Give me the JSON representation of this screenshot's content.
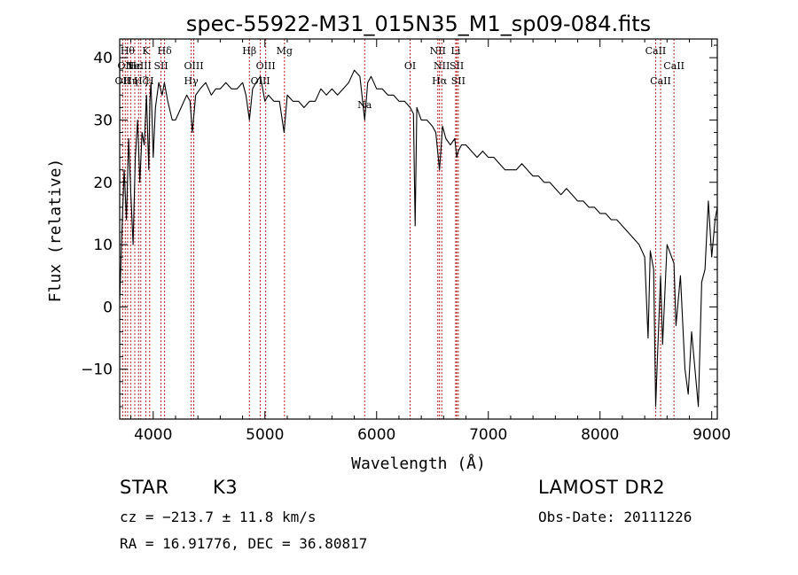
{
  "chart_data": {
    "type": "line",
    "title": "spec-55922-M31_015N35_M1_sp09-084.fits",
    "xlabel": "Wavelength (Å)",
    "ylabel": "Flux (relative)",
    "xlim": [
      3700,
      9050
    ],
    "ylim": [
      -18,
      43
    ],
    "xticks": [
      4000,
      5000,
      6000,
      7000,
      8000,
      9000
    ],
    "yticks": [
      -10,
      0,
      10,
      20,
      30,
      40
    ],
    "grid": false,
    "line_color": "#000000",
    "marker_color": "#b22222",
    "series": [
      {
        "x": [
          3700,
          3720,
          3740,
          3760,
          3780,
          3800,
          3820,
          3840,
          3860,
          3880,
          3900,
          3920,
          3940,
          3960,
          3970,
          3980,
          4000,
          4020,
          4050,
          4080,
          4100,
          4130,
          4170,
          4200,
          4250,
          4300,
          4330,
          4350,
          4380,
          4420,
          4470,
          4520,
          4560,
          4600,
          4650,
          4700,
          4750,
          4800,
          4830,
          4861,
          4890,
          4920,
          4960,
          5000,
          5030,
          5080,
          5130,
          5172,
          5200,
          5250,
          5300,
          5350,
          5400,
          5450,
          5500,
          5550,
          5600,
          5650,
          5700,
          5750,
          5800,
          5850,
          5893,
          5920,
          5950,
          6000,
          6050,
          6100,
          6150,
          6200,
          6250,
          6300,
          6330,
          6345,
          6360,
          6400,
          6450,
          6500,
          6530,
          6563,
          6590,
          6620,
          6660,
          6700,
          6717,
          6731,
          6760,
          6800,
          6850,
          6900,
          6950,
          7000,
          7050,
          7100,
          7150,
          7200,
          7250,
          7300,
          7350,
          7400,
          7450,
          7500,
          7550,
          7600,
          7650,
          7700,
          7750,
          7800,
          7850,
          7900,
          7950,
          8000,
          8050,
          8100,
          8150,
          8200,
          8250,
          8300,
          8350,
          8400,
          8430,
          8450,
          8480,
          8498,
          8510,
          8542,
          8560,
          8600,
          8662,
          8680,
          8720,
          8760,
          8790,
          8820,
          8850,
          8880,
          8910,
          8940,
          8970,
          9000,
          9030,
          9050
        ],
        "y": [
          1,
          12,
          22,
          14,
          27,
          18,
          10,
          24,
          30,
          20,
          28,
          26,
          34,
          22,
          33,
          36,
          24,
          32,
          36,
          34,
          36,
          33,
          30,
          30,
          32,
          34,
          33,
          28,
          34,
          35,
          36,
          34,
          35,
          35,
          36,
          35,
          35,
          36,
          34,
          30,
          35,
          36,
          37,
          33,
          34,
          33,
          33,
          28,
          34,
          33,
          33,
          32,
          33,
          33,
          35,
          34,
          35,
          34,
          35,
          36,
          38,
          37,
          30,
          36,
          37,
          35,
          35,
          34,
          34,
          33,
          33,
          32,
          31,
          13,
          32,
          30,
          30,
          29,
          28,
          22,
          29,
          27,
          26,
          27,
          24,
          25,
          26,
          26,
          25,
          24,
          25,
          24,
          24,
          23,
          22,
          22,
          22,
          23,
          22,
          21,
          21,
          20,
          20,
          19,
          18,
          19,
          18,
          17,
          17,
          16,
          16,
          15,
          15,
          14,
          14,
          13,
          12,
          11,
          10,
          8,
          -5,
          9,
          6,
          -16,
          -10,
          5,
          -6,
          10,
          7,
          -3,
          5,
          -10,
          -14,
          -4,
          -10,
          -16,
          4,
          6,
          17,
          8,
          14,
          16
        ]
      }
    ],
    "line_markers": [
      {
        "x": 3727,
        "label": "OII",
        "row": 3
      },
      {
        "x": 3750,
        "label": "OII",
        "row": 2
      },
      {
        "x": 3771,
        "label": "Hθ",
        "row": 1
      },
      {
        "x": 3798,
        "label": "Hη",
        "row": 3
      },
      {
        "x": 3835,
        "label": "Hε",
        "row": 2
      },
      {
        "x": 3869,
        "label": "NeIII",
        "row": 2
      },
      {
        "x": 3889,
        "label": "Hζ",
        "row": 3
      },
      {
        "x": 3934,
        "label": "K",
        "row": 1
      },
      {
        "x": 3968,
        "label": "H",
        "row": 3
      },
      {
        "x": 4070,
        "label": "SII",
        "row": 2
      },
      {
        "x": 4102,
        "label": "Hδ",
        "row": 1
      },
      {
        "x": 4340,
        "label": "Hγ",
        "row": 3
      },
      {
        "x": 4363,
        "label": "OIII",
        "row": 2
      },
      {
        "x": 4861,
        "label": "Hβ",
        "row": 1
      },
      {
        "x": 4959,
        "label": "OIII",
        "row": 3
      },
      {
        "x": 5007,
        "label": "OIII",
        "row": 2
      },
      {
        "x": 5175,
        "label": "Mg",
        "row": 1
      },
      {
        "x": 5893,
        "label": "Na",
        "row": 4
      },
      {
        "x": 6300,
        "label": "OI",
        "row": 2
      },
      {
        "x": 6548,
        "label": "NII",
        "row": 1
      },
      {
        "x": 6563,
        "label": "Hα",
        "row": 3
      },
      {
        "x": 6583,
        "label": "NII",
        "row": 2
      },
      {
        "x": 6708,
        "label": "Li",
        "row": 1
      },
      {
        "x": 6717,
        "label": "SII",
        "row": 2
      },
      {
        "x": 6731,
        "label": "SII",
        "row": 3
      },
      {
        "x": 8498,
        "label": "CaII",
        "row": 1
      },
      {
        "x": 8542,
        "label": "CaII",
        "row": 3
      },
      {
        "x": 8662,
        "label": "CaII",
        "row": 2
      }
    ]
  },
  "info": {
    "class_label": "STAR",
    "subclass_label": "K3",
    "survey": "LAMOST DR2",
    "velocity": "cz = −213.7 ± 11.8 km/s",
    "obs_date": "Obs-Date: 20111226",
    "coords": "RA =  16.91776, DEC =  36.80817"
  }
}
